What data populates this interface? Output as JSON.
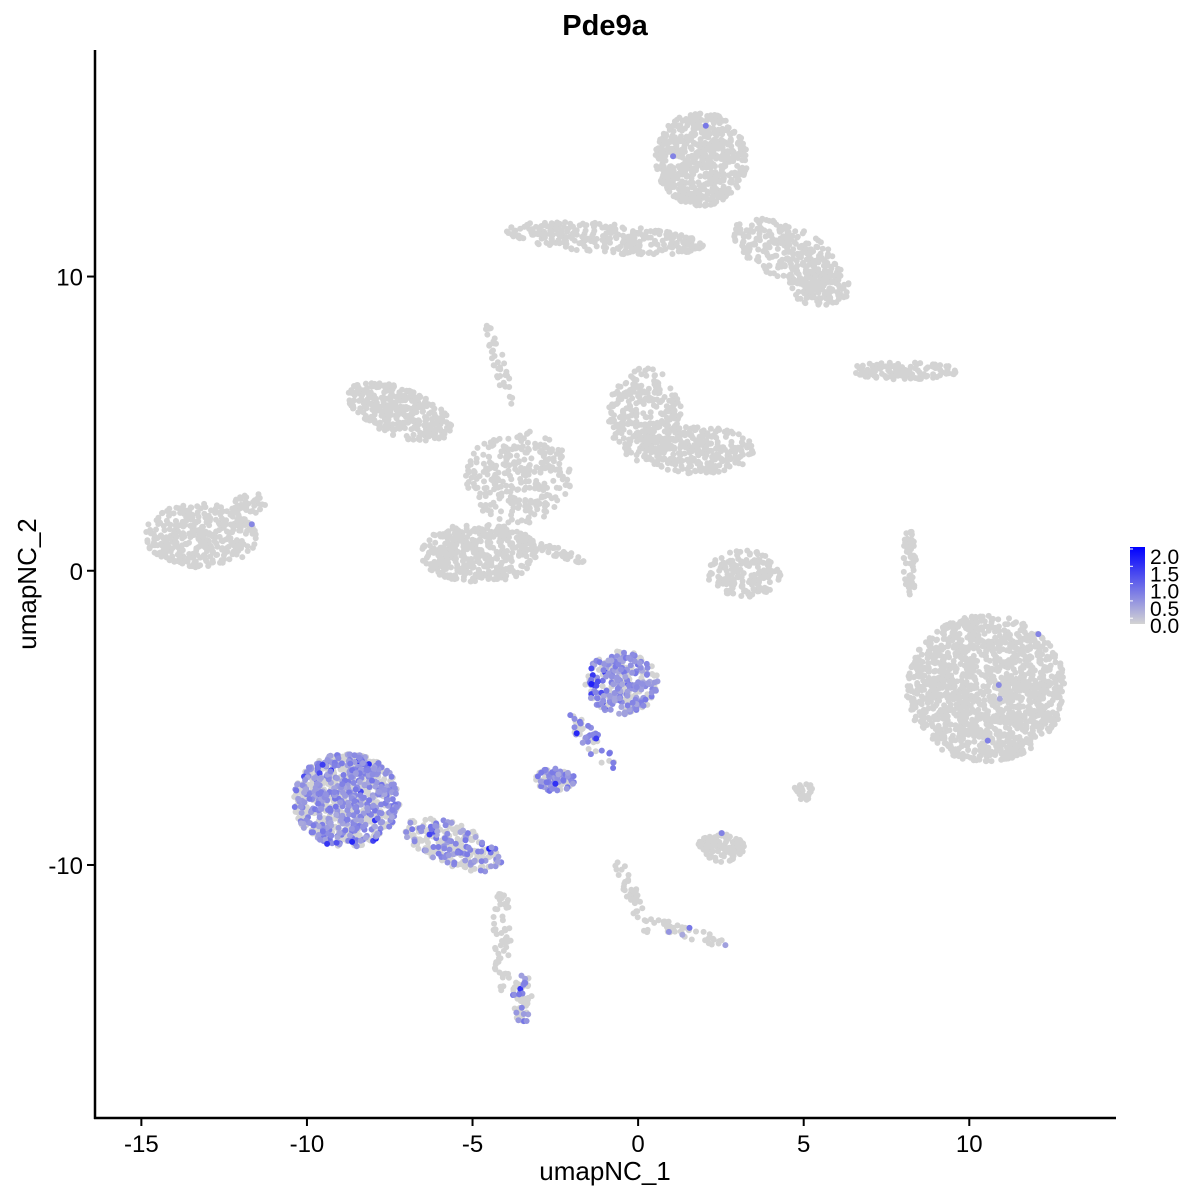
{
  "chart_data": {
    "type": "scatter",
    "title": "Pde9a",
    "xlabel": "umapNC_1",
    "ylabel": "umapNC_2",
    "xlim": [
      -16.4,
      14.4
    ],
    "ylim": [
      -18.6,
      17.7
    ],
    "xticks": [
      -15,
      -10,
      -5,
      0,
      5,
      10
    ],
    "yticks": [
      -10,
      0,
      10
    ],
    "grid": false,
    "color_scale": {
      "low": "#d3d3d3",
      "high": "#0000ff",
      "min": 0.0,
      "max": 2.0
    },
    "legend": {
      "position": "right",
      "labels": [
        "2.0",
        "1.5",
        "1.0",
        "0.5",
        "0.0"
      ]
    },
    "clusters": [
      {
        "center": [
          1.9,
          14.0
        ],
        "spread": [
          1.4,
          1.6
        ],
        "angle": 0,
        "n": 600,
        "expr_frac": 0.002
      },
      {
        "center": [
          -1.0,
          11.3
        ],
        "spread": [
          3.0,
          0.5
        ],
        "angle": -5,
        "n": 300,
        "expr_frac": 0
      },
      {
        "center": [
          4.5,
          10.8
        ],
        "spread": [
          1.8,
          0.9
        ],
        "angle": -30,
        "n": 300,
        "expr_frac": 0
      },
      {
        "center": [
          5.5,
          9.6
        ],
        "spread": [
          0.9,
          0.6
        ],
        "angle": 0,
        "n": 120,
        "expr_frac": 0
      },
      {
        "center": [
          -13.2,
          1.2
        ],
        "spread": [
          1.7,
          1.1
        ],
        "angle": 0,
        "n": 350,
        "expr_frac": 0.003
      },
      {
        "center": [
          -11.8,
          2.2
        ],
        "spread": [
          0.6,
          0.4
        ],
        "angle": 30,
        "n": 40,
        "expr_frac": 0
      },
      {
        "center": [
          -7.2,
          5.4
        ],
        "spread": [
          1.7,
          0.8
        ],
        "angle": -25,
        "n": 350,
        "expr_frac": 0
      },
      {
        "center": [
          -3.6,
          3.2
        ],
        "spread": [
          1.6,
          1.6
        ],
        "angle": 0,
        "n": 300,
        "expr_frac": 0
      },
      {
        "center": [
          0.2,
          5.3
        ],
        "spread": [
          1.1,
          1.6
        ],
        "angle": 0,
        "n": 300,
        "expr_frac": 0
      },
      {
        "center": [
          1.8,
          4.1
        ],
        "spread": [
          1.7,
          0.8
        ],
        "angle": 0,
        "n": 300,
        "expr_frac": 0
      },
      {
        "center": [
          -4.8,
          0.6
        ],
        "spread": [
          1.8,
          1.0
        ],
        "angle": 0,
        "n": 400,
        "expr_frac": 0
      },
      {
        "center": [
          -3.0,
          0.9
        ],
        "spread": [
          1.6,
          0.2
        ],
        "angle": -25,
        "n": 60,
        "expr_frac": 0
      },
      {
        "center": [
          -4.2,
          7.0
        ],
        "spread": [
          0.2,
          1.4
        ],
        "angle": 15,
        "n": 40,
        "expr_frac": 0
      },
      {
        "center": [
          3.2,
          -0.1
        ],
        "spread": [
          1.1,
          0.8
        ],
        "angle": 0,
        "n": 180,
        "expr_frac": 0
      },
      {
        "center": [
          8.0,
          6.8
        ],
        "spread": [
          1.7,
          0.3
        ],
        "angle": 0,
        "n": 120,
        "expr_frac": 0
      },
      {
        "center": [
          8.2,
          0.3
        ],
        "spread": [
          0.2,
          1.2
        ],
        "angle": 0,
        "n": 50,
        "expr_frac": 0
      },
      {
        "center": [
          10.5,
          -4.0
        ],
        "spread": [
          2.4,
          2.5
        ],
        "angle": 0,
        "n": 1400,
        "expr_frac": 0.003
      },
      {
        "center": [
          -8.8,
          -7.8
        ],
        "spread": [
          1.6,
          1.6
        ],
        "angle": 0,
        "n": 900,
        "expr_frac": 0.45
      },
      {
        "center": [
          -5.6,
          -9.3
        ],
        "spread": [
          1.6,
          0.7
        ],
        "angle": -25,
        "n": 250,
        "expr_frac": 0.35
      },
      {
        "center": [
          -4.1,
          -12.5
        ],
        "spread": [
          0.3,
          1.8
        ],
        "angle": 0,
        "n": 60,
        "expr_frac": 0
      },
      {
        "center": [
          -3.5,
          -14.5
        ],
        "spread": [
          0.3,
          0.9
        ],
        "angle": 0,
        "n": 60,
        "expr_frac": 0.3
      },
      {
        "center": [
          -0.5,
          -3.8
        ],
        "spread": [
          1.1,
          1.1
        ],
        "angle": 0,
        "n": 300,
        "expr_frac": 0.55
      },
      {
        "center": [
          -1.4,
          -5.8
        ],
        "spread": [
          0.3,
          1.2
        ],
        "angle": 35,
        "n": 50,
        "expr_frac": 0.5
      },
      {
        "center": [
          -2.5,
          -7.1
        ],
        "spread": [
          0.6,
          0.4
        ],
        "angle": 0,
        "n": 100,
        "expr_frac": 0.55
      },
      {
        "center": [
          2.5,
          -9.4
        ],
        "spread": [
          0.7,
          0.5
        ],
        "angle": 0,
        "n": 120,
        "expr_frac": 0.02
      },
      {
        "center": [
          -0.2,
          -11.0
        ],
        "spread": [
          0.2,
          1.4
        ],
        "angle": 20,
        "n": 40,
        "expr_frac": 0.05
      },
      {
        "center": [
          1.5,
          -12.3
        ],
        "spread": [
          1.4,
          0.2
        ],
        "angle": -20,
        "n": 40,
        "expr_frac": 0.1
      },
      {
        "center": [
          5.0,
          -7.5
        ],
        "spread": [
          0.3,
          0.3
        ],
        "angle": 0,
        "n": 25,
        "expr_frac": 0
      }
    ]
  }
}
